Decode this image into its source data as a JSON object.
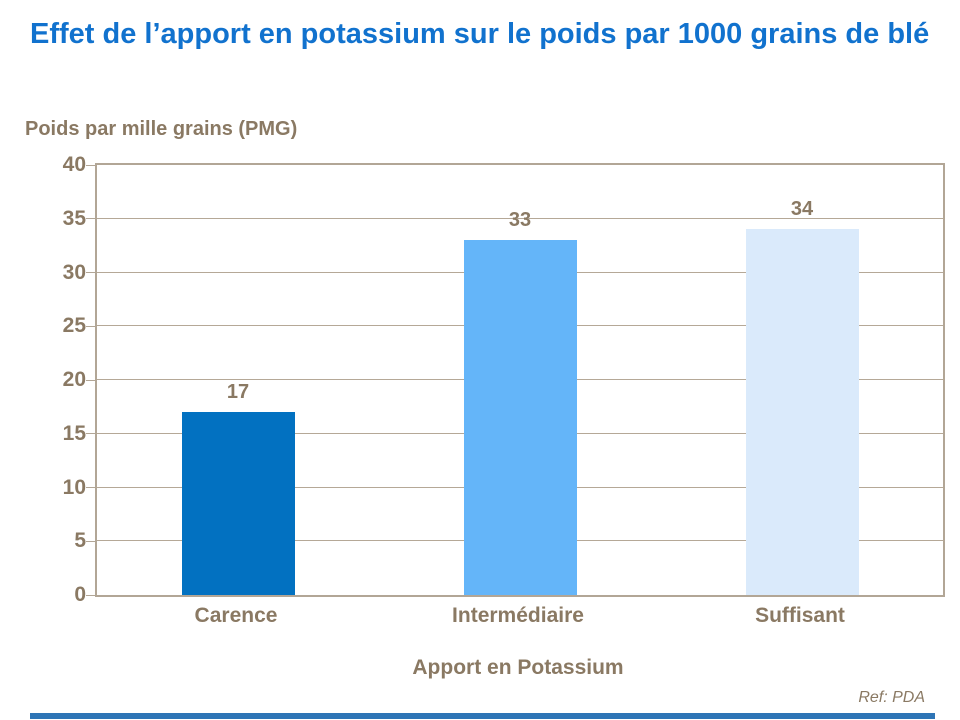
{
  "chart_data": {
    "type": "bar",
    "title": "Effet de l’apport en potassium sur le poids par 1000 grains de blé",
    "y_axis_title": "Poids par mille grains (PMG)",
    "xlabel": "Apport en Potassium",
    "ylabel": "Poids par mille grains (PMG)",
    "categories": [
      "Carence",
      "Intermédiaire",
      "Suffisant"
    ],
    "values": [
      17,
      33,
      34
    ],
    "data_labels": [
      "17",
      "33",
      "34"
    ],
    "bar_colors": [
      "#0271C1",
      "#64B5F9",
      "#DAEAFB"
    ],
    "ylim": [
      0,
      40
    ],
    "yticks": [
      0,
      5,
      10,
      15,
      20,
      25,
      30,
      35,
      40
    ],
    "grid": true,
    "legend_position": "none"
  },
  "footer": {
    "ref_label": "Ref: PDA"
  },
  "colors": {
    "title_blue": "#1172CE",
    "text_brown": "#8A7963",
    "frame_border": "#B2A696",
    "gridline": "#B5A897",
    "footer_accent": "#2E75B6"
  }
}
